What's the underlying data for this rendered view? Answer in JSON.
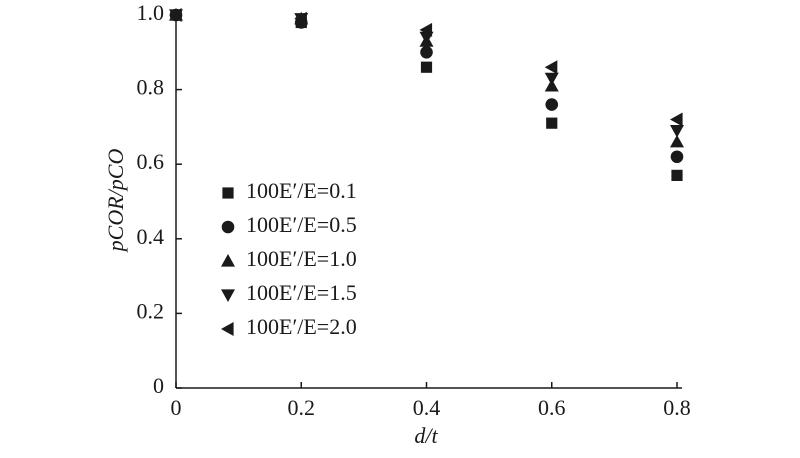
{
  "chart_data": {
    "type": "scatter",
    "x_label": "d/t",
    "y_label": "pCOR/pCO",
    "x": [
      0,
      0.2,
      0.4,
      0.6,
      0.8
    ],
    "series": [
      {
        "name": "100E′/E=0.1",
        "marker": "square",
        "color": "#1a1a1a",
        "values": [
          1.0,
          0.98,
          0.86,
          0.71,
          0.57
        ]
      },
      {
        "name": "100E′/E=0.5",
        "marker": "circle",
        "color": "#1a1a1a",
        "values": [
          1.0,
          0.98,
          0.9,
          0.76,
          0.62
        ]
      },
      {
        "name": "100E′/E=1.0",
        "marker": "triangle-up",
        "color": "#1a1a1a",
        "values": [
          1.0,
          0.99,
          0.93,
          0.81,
          0.66
        ]
      },
      {
        "name": "100E′/E=1.5",
        "marker": "triangle-down",
        "color": "#1a1a1a",
        "values": [
          1.0,
          0.99,
          0.94,
          0.83,
          0.69
        ]
      },
      {
        "name": "100E′/E=2.0",
        "marker": "triangle-left",
        "color": "#1a1a1a",
        "values": [
          1.0,
          0.99,
          0.96,
          0.86,
          0.72
        ]
      }
    ],
    "xlim": [
      0,
      0.8
    ],
    "ylim": [
      0,
      1
    ],
    "xticks": [
      0,
      0.2,
      0.4,
      0.6,
      0.8
    ],
    "yticks": [
      0,
      0.2,
      0.4,
      0.6,
      0.8,
      {
        "value": 1,
        "label": "1.0"
      }
    ],
    "grid": false,
    "legend": "center left"
  }
}
